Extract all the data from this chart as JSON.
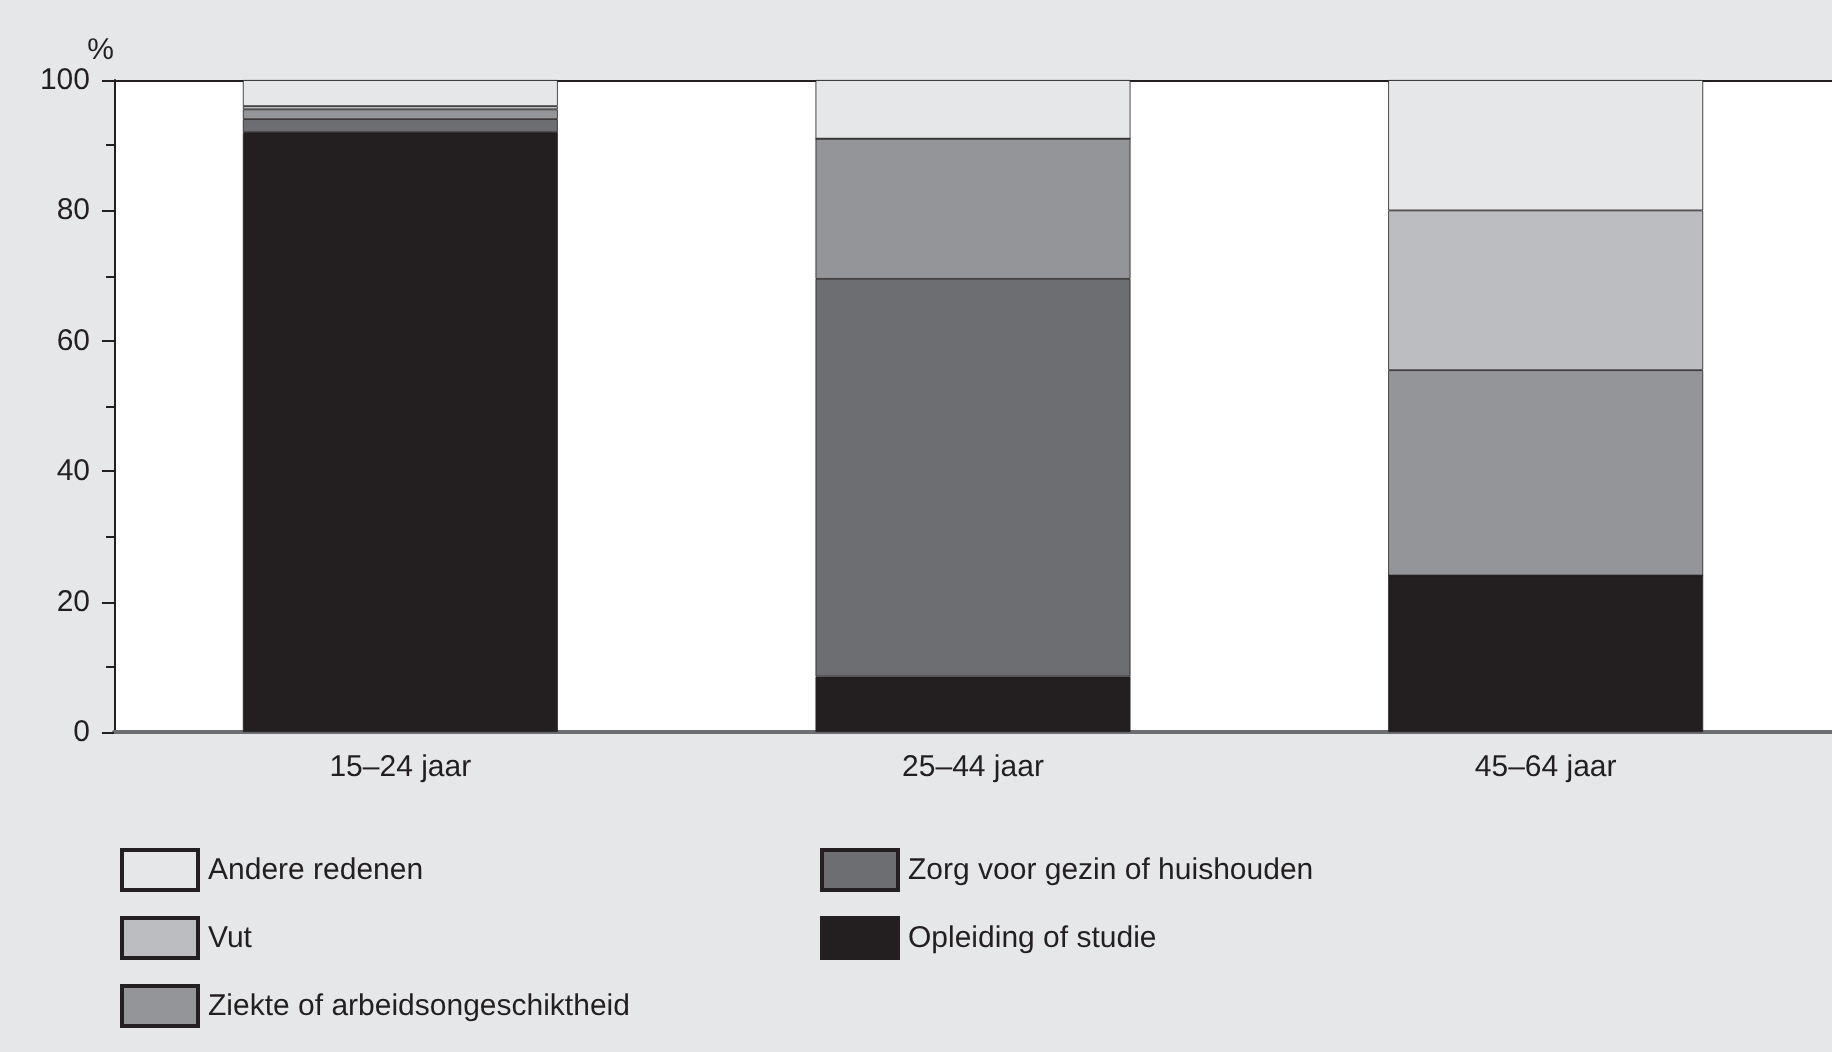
{
  "chart_data": {
    "type": "bar",
    "stacked": true,
    "ylabel": "%",
    "categories": [
      "15–24 jaar",
      "25–44 jaar",
      "45–64 jaar"
    ],
    "series": [
      {
        "name": "Opleiding of studie",
        "color": "#231f20",
        "values": [
          92,
          8.5,
          24
        ]
      },
      {
        "name": "Zorg voor gezin of huishouden",
        "color": "#6d6e71",
        "values": [
          2,
          61,
          0
        ]
      },
      {
        "name": "Ziekte of arbeidsongeschiktheid",
        "color": "#939598",
        "values": [
          1.5,
          21.5,
          31.5
        ]
      },
      {
        "name": "Vut",
        "color": "#bcbdc0",
        "values": [
          0.5,
          0,
          24.5
        ]
      },
      {
        "name": "Andere redenen",
        "color": "#e6e7e9",
        "values": [
          4,
          9,
          20
        ]
      }
    ],
    "ylim": [
      0,
      100
    ],
    "yticks": [
      0,
      20,
      40,
      60,
      80,
      100
    ],
    "grid": false,
    "legend": "bottom"
  }
}
